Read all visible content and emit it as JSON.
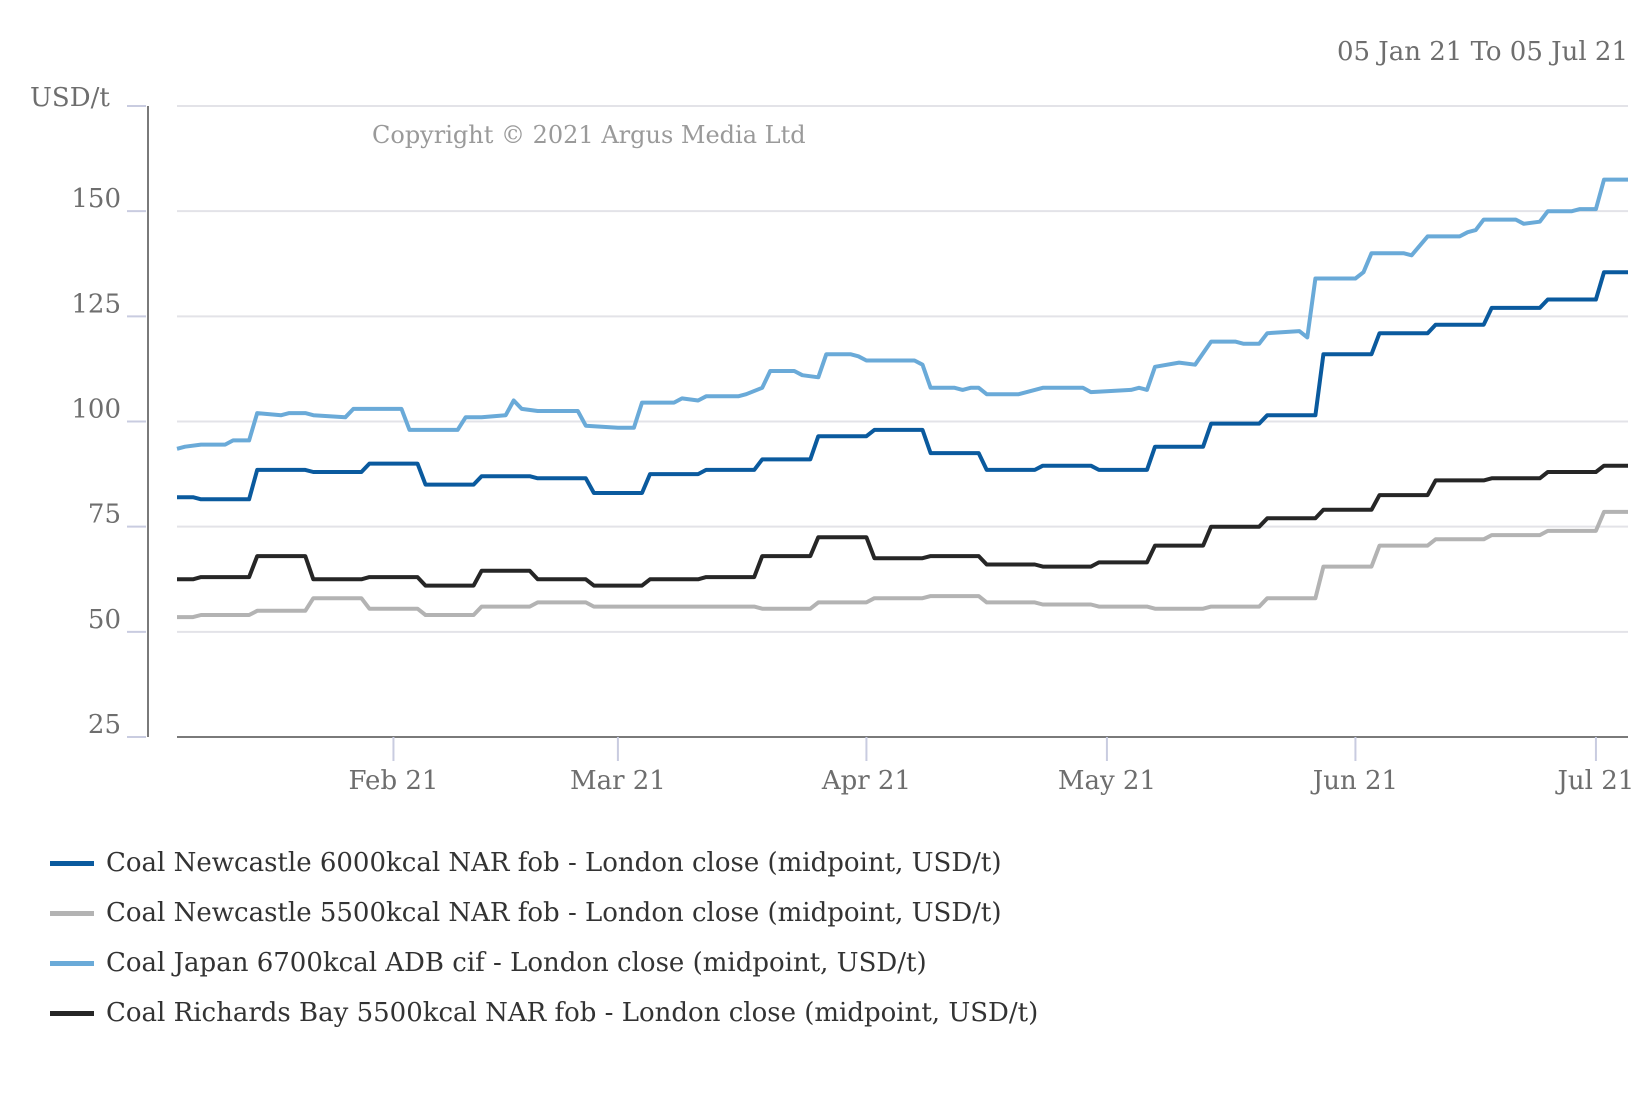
{
  "chart_data": {
    "type": "line",
    "date_range": "05 Jan 21 To 05 Jul 21",
    "ylabel": "USD/t",
    "copyright": "Copyright © 2021 Argus Media Ltd",
    "ylim": [
      25,
      175
    ],
    "y_ticks": [
      25,
      50,
      75,
      100,
      125,
      150
    ],
    "y_tick_labels": [
      "25",
      "50",
      "75",
      "100",
      "125",
      "150"
    ],
    "x_range": [
      "2021-01-05",
      "2021-07-05"
    ],
    "x_ticks": [
      {
        "date": "2021-02-01",
        "label": "Feb 21"
      },
      {
        "date": "2021-03-01",
        "label": "Mar 21"
      },
      {
        "date": "2021-04-01",
        "label": "Apr 21"
      },
      {
        "date": "2021-05-01",
        "label": "May 21"
      },
      {
        "date": "2021-06-01",
        "label": "Jun 21"
      },
      {
        "date": "2021-07-01",
        "label": "Jul 21"
      }
    ],
    "grid": true,
    "legend_position": "bottom",
    "series": [
      {
        "name": "Coal Newcastle 6000kcal NAR fob - London close (midpoint, USD/t)",
        "color": "#0a5a9e",
        "points": [
          [
            "2021-01-05",
            82
          ],
          [
            "2021-01-07",
            82
          ],
          [
            "2021-01-08",
            81.5
          ],
          [
            "2021-01-14",
            81.5
          ],
          [
            "2021-01-15",
            88.5
          ],
          [
            "2021-01-21",
            88.5
          ],
          [
            "2021-01-22",
            88
          ],
          [
            "2021-01-28",
            88
          ],
          [
            "2021-01-29",
            90
          ],
          [
            "2021-02-04",
            90
          ],
          [
            "2021-02-05",
            85
          ],
          [
            "2021-02-11",
            85
          ],
          [
            "2021-02-12",
            87
          ],
          [
            "2021-02-18",
            87
          ],
          [
            "2021-02-19",
            86.5
          ],
          [
            "2021-02-25",
            86.5
          ],
          [
            "2021-02-26",
            83
          ],
          [
            "2021-03-04",
            83
          ],
          [
            "2021-03-05",
            87.5
          ],
          [
            "2021-03-11",
            87.5
          ],
          [
            "2021-03-12",
            88.5
          ],
          [
            "2021-03-18",
            88.5
          ],
          [
            "2021-03-19",
            91
          ],
          [
            "2021-03-25",
            91
          ],
          [
            "2021-03-26",
            96.5
          ],
          [
            "2021-04-01",
            96.5
          ],
          [
            "2021-04-02",
            98
          ],
          [
            "2021-04-08",
            98
          ],
          [
            "2021-04-09",
            92.5
          ],
          [
            "2021-04-15",
            92.5
          ],
          [
            "2021-04-16",
            88.5
          ],
          [
            "2021-04-22",
            88.5
          ],
          [
            "2021-04-23",
            89.5
          ],
          [
            "2021-04-29",
            89.5
          ],
          [
            "2021-04-30",
            88.5
          ],
          [
            "2021-05-06",
            88.5
          ],
          [
            "2021-05-07",
            94
          ],
          [
            "2021-05-13",
            94
          ],
          [
            "2021-05-14",
            99.5
          ],
          [
            "2021-05-20",
            99.5
          ],
          [
            "2021-05-21",
            101.5
          ],
          [
            "2021-05-27",
            101.5
          ],
          [
            "2021-05-28",
            116
          ],
          [
            "2021-06-03",
            116
          ],
          [
            "2021-06-04",
            121
          ],
          [
            "2021-06-10",
            121
          ],
          [
            "2021-06-11",
            123
          ],
          [
            "2021-06-17",
            123
          ],
          [
            "2021-06-18",
            127
          ],
          [
            "2021-06-24",
            127
          ],
          [
            "2021-06-25",
            129
          ],
          [
            "2021-07-01",
            129
          ],
          [
            "2021-07-02",
            135.5
          ],
          [
            "2021-07-05",
            135.5
          ]
        ]
      },
      {
        "name": "Coal Newcastle 5500kcal NAR fob - London close (midpoint, USD/t)",
        "color": "#b3b3b3",
        "points": [
          [
            "2021-01-05",
            53.5
          ],
          [
            "2021-01-07",
            53.5
          ],
          [
            "2021-01-08",
            54
          ],
          [
            "2021-01-14",
            54
          ],
          [
            "2021-01-15",
            55
          ],
          [
            "2021-01-21",
            55
          ],
          [
            "2021-01-22",
            58
          ],
          [
            "2021-01-28",
            58
          ],
          [
            "2021-01-29",
            55.5
          ],
          [
            "2021-02-04",
            55.5
          ],
          [
            "2021-02-05",
            54
          ],
          [
            "2021-02-11",
            54
          ],
          [
            "2021-02-12",
            56
          ],
          [
            "2021-02-18",
            56
          ],
          [
            "2021-02-19",
            57
          ],
          [
            "2021-02-25",
            57
          ],
          [
            "2021-02-26",
            56
          ],
          [
            "2021-03-18",
            56
          ],
          [
            "2021-03-19",
            55.5
          ],
          [
            "2021-03-25",
            55.5
          ],
          [
            "2021-03-26",
            57
          ],
          [
            "2021-04-01",
            57
          ],
          [
            "2021-04-02",
            58
          ],
          [
            "2021-04-08",
            58
          ],
          [
            "2021-04-09",
            58.5
          ],
          [
            "2021-04-15",
            58.5
          ],
          [
            "2021-04-16",
            57
          ],
          [
            "2021-04-22",
            57
          ],
          [
            "2021-04-23",
            56.5
          ],
          [
            "2021-04-29",
            56.5
          ],
          [
            "2021-04-30",
            56
          ],
          [
            "2021-05-06",
            56
          ],
          [
            "2021-05-07",
            55.5
          ],
          [
            "2021-05-13",
            55.5
          ],
          [
            "2021-05-14",
            56
          ],
          [
            "2021-05-20",
            56
          ],
          [
            "2021-05-21",
            58
          ],
          [
            "2021-05-27",
            58
          ],
          [
            "2021-05-28",
            65.5
          ],
          [
            "2021-06-03",
            65.5
          ],
          [
            "2021-06-04",
            70.5
          ],
          [
            "2021-06-10",
            70.5
          ],
          [
            "2021-06-11",
            72
          ],
          [
            "2021-06-17",
            72
          ],
          [
            "2021-06-18",
            73
          ],
          [
            "2021-06-24",
            73
          ],
          [
            "2021-06-25",
            74
          ],
          [
            "2021-07-01",
            74
          ],
          [
            "2021-07-02",
            78.5
          ],
          [
            "2021-07-05",
            78.5
          ]
        ]
      },
      {
        "name": "Coal Japan 6700kcal ADB cif - London close (midpoint, USD/t)",
        "color": "#6aaad8",
        "points": [
          [
            "2021-01-05",
            93.5
          ],
          [
            "2021-01-06",
            94
          ],
          [
            "2021-01-08",
            94.5
          ],
          [
            "2021-01-11",
            94.5
          ],
          [
            "2021-01-12",
            95.5
          ],
          [
            "2021-01-14",
            95.5
          ],
          [
            "2021-01-15",
            102
          ],
          [
            "2021-01-18",
            101.5
          ],
          [
            "2021-01-19",
            102
          ],
          [
            "2021-01-21",
            102
          ],
          [
            "2021-01-22",
            101.5
          ],
          [
            "2021-01-26",
            101
          ],
          [
            "2021-01-27",
            103
          ],
          [
            "2021-02-02",
            103
          ],
          [
            "2021-02-03",
            98
          ],
          [
            "2021-02-05",
            98
          ],
          [
            "2021-02-08",
            98
          ],
          [
            "2021-02-09",
            98
          ],
          [
            "2021-02-10",
            101
          ],
          [
            "2021-02-12",
            101
          ],
          [
            "2021-02-15",
            101.5
          ],
          [
            "2021-02-16",
            105
          ],
          [
            "2021-02-17",
            103
          ],
          [
            "2021-02-19",
            102.5
          ],
          [
            "2021-02-22",
            102.5
          ],
          [
            "2021-02-24",
            102.5
          ],
          [
            "2021-02-25",
            99
          ],
          [
            "2021-03-01",
            98.5
          ],
          [
            "2021-03-03",
            98.5
          ],
          [
            "2021-03-04",
            104.5
          ],
          [
            "2021-03-08",
            104.5
          ],
          [
            "2021-03-09",
            105.5
          ],
          [
            "2021-03-11",
            105
          ],
          [
            "2021-03-12",
            106
          ],
          [
            "2021-03-16",
            106
          ],
          [
            "2021-03-17",
            106.5
          ],
          [
            "2021-03-19",
            108
          ],
          [
            "2021-03-20",
            112
          ],
          [
            "2021-03-23",
            112
          ],
          [
            "2021-03-24",
            111
          ],
          [
            "2021-03-26",
            110.5
          ],
          [
            "2021-03-27",
            116
          ],
          [
            "2021-03-30",
            116
          ],
          [
            "2021-03-31",
            115.5
          ],
          [
            "2021-04-01",
            114.5
          ],
          [
            "2021-04-07",
            114.5
          ],
          [
            "2021-04-08",
            113.5
          ],
          [
            "2021-04-09",
            108
          ],
          [
            "2021-04-12",
            108
          ],
          [
            "2021-04-13",
            107.5
          ],
          [
            "2021-04-14",
            108
          ],
          [
            "2021-04-15",
            108
          ],
          [
            "2021-04-16",
            106.5
          ],
          [
            "2021-04-20",
            106.5
          ],
          [
            "2021-04-21",
            107
          ],
          [
            "2021-04-22",
            107.5
          ],
          [
            "2021-04-23",
            108
          ],
          [
            "2021-04-28",
            108
          ],
          [
            "2021-04-29",
            107
          ],
          [
            "2021-05-04",
            107.5
          ],
          [
            "2021-05-05",
            108
          ],
          [
            "2021-05-06",
            107.5
          ],
          [
            "2021-05-07",
            113
          ],
          [
            "2021-05-10",
            114
          ],
          [
            "2021-05-12",
            113.5
          ],
          [
            "2021-05-14",
            119
          ],
          [
            "2021-05-17",
            119
          ],
          [
            "2021-05-18",
            118.5
          ],
          [
            "2021-05-20",
            118.5
          ],
          [
            "2021-05-21",
            121
          ],
          [
            "2021-05-25",
            121.5
          ],
          [
            "2021-05-26",
            120
          ],
          [
            "2021-05-27",
            134
          ],
          [
            "2021-06-01",
            134
          ],
          [
            "2021-06-02",
            135.5
          ],
          [
            "2021-06-03",
            140
          ],
          [
            "2021-06-07",
            140
          ],
          [
            "2021-06-08",
            139.5
          ],
          [
            "2021-06-10",
            144
          ],
          [
            "2021-06-14",
            144
          ],
          [
            "2021-06-15",
            145
          ],
          [
            "2021-06-16",
            145.5
          ],
          [
            "2021-06-17",
            148
          ],
          [
            "2021-06-21",
            148
          ],
          [
            "2021-06-22",
            147
          ],
          [
            "2021-06-24",
            147.5
          ],
          [
            "2021-06-25",
            150
          ],
          [
            "2021-06-28",
            150
          ],
          [
            "2021-06-29",
            150.5
          ],
          [
            "2021-07-01",
            150.5
          ],
          [
            "2021-07-02",
            157.5
          ],
          [
            "2021-07-05",
            157.5
          ]
        ]
      },
      {
        "name": "Coal Richards Bay 5500kcal NAR fob - London close (midpoint, USD/t)",
        "color": "#262626",
        "points": [
          [
            "2021-01-05",
            62.5
          ],
          [
            "2021-01-07",
            62.5
          ],
          [
            "2021-01-08",
            63
          ],
          [
            "2021-01-14",
            63
          ],
          [
            "2021-01-15",
            68
          ],
          [
            "2021-01-21",
            68
          ],
          [
            "2021-01-22",
            62.5
          ],
          [
            "2021-01-28",
            62.5
          ],
          [
            "2021-01-29",
            63
          ],
          [
            "2021-02-04",
            63
          ],
          [
            "2021-02-05",
            61
          ],
          [
            "2021-02-11",
            61
          ],
          [
            "2021-02-12",
            64.5
          ],
          [
            "2021-02-18",
            64.5
          ],
          [
            "2021-02-19",
            62.5
          ],
          [
            "2021-02-25",
            62.5
          ],
          [
            "2021-02-26",
            61
          ],
          [
            "2021-03-04",
            61
          ],
          [
            "2021-03-05",
            62.5
          ],
          [
            "2021-03-11",
            62.5
          ],
          [
            "2021-03-12",
            63
          ],
          [
            "2021-03-18",
            63
          ],
          [
            "2021-03-19",
            68
          ],
          [
            "2021-03-25",
            68
          ],
          [
            "2021-03-26",
            72.5
          ],
          [
            "2021-04-01",
            72.5
          ],
          [
            "2021-04-02",
            67.5
          ],
          [
            "2021-04-08",
            67.5
          ],
          [
            "2021-04-09",
            68
          ],
          [
            "2021-04-15",
            68
          ],
          [
            "2021-04-16",
            66
          ],
          [
            "2021-04-22",
            66
          ],
          [
            "2021-04-23",
            65.5
          ],
          [
            "2021-04-29",
            65.5
          ],
          [
            "2021-04-30",
            66.5
          ],
          [
            "2021-05-06",
            66.5
          ],
          [
            "2021-05-07",
            70.5
          ],
          [
            "2021-05-13",
            70.5
          ],
          [
            "2021-05-14",
            75
          ],
          [
            "2021-05-20",
            75
          ],
          [
            "2021-05-21",
            77
          ],
          [
            "2021-05-27",
            77
          ],
          [
            "2021-05-28",
            79
          ],
          [
            "2021-06-03",
            79
          ],
          [
            "2021-06-04",
            82.5
          ],
          [
            "2021-06-10",
            82.5
          ],
          [
            "2021-06-11",
            86
          ],
          [
            "2021-06-17",
            86
          ],
          [
            "2021-06-18",
            86.5
          ],
          [
            "2021-06-24",
            86.5
          ],
          [
            "2021-06-25",
            88
          ],
          [
            "2021-07-01",
            88
          ],
          [
            "2021-07-02",
            89.5
          ],
          [
            "2021-07-05",
            89.5
          ]
        ]
      }
    ]
  }
}
